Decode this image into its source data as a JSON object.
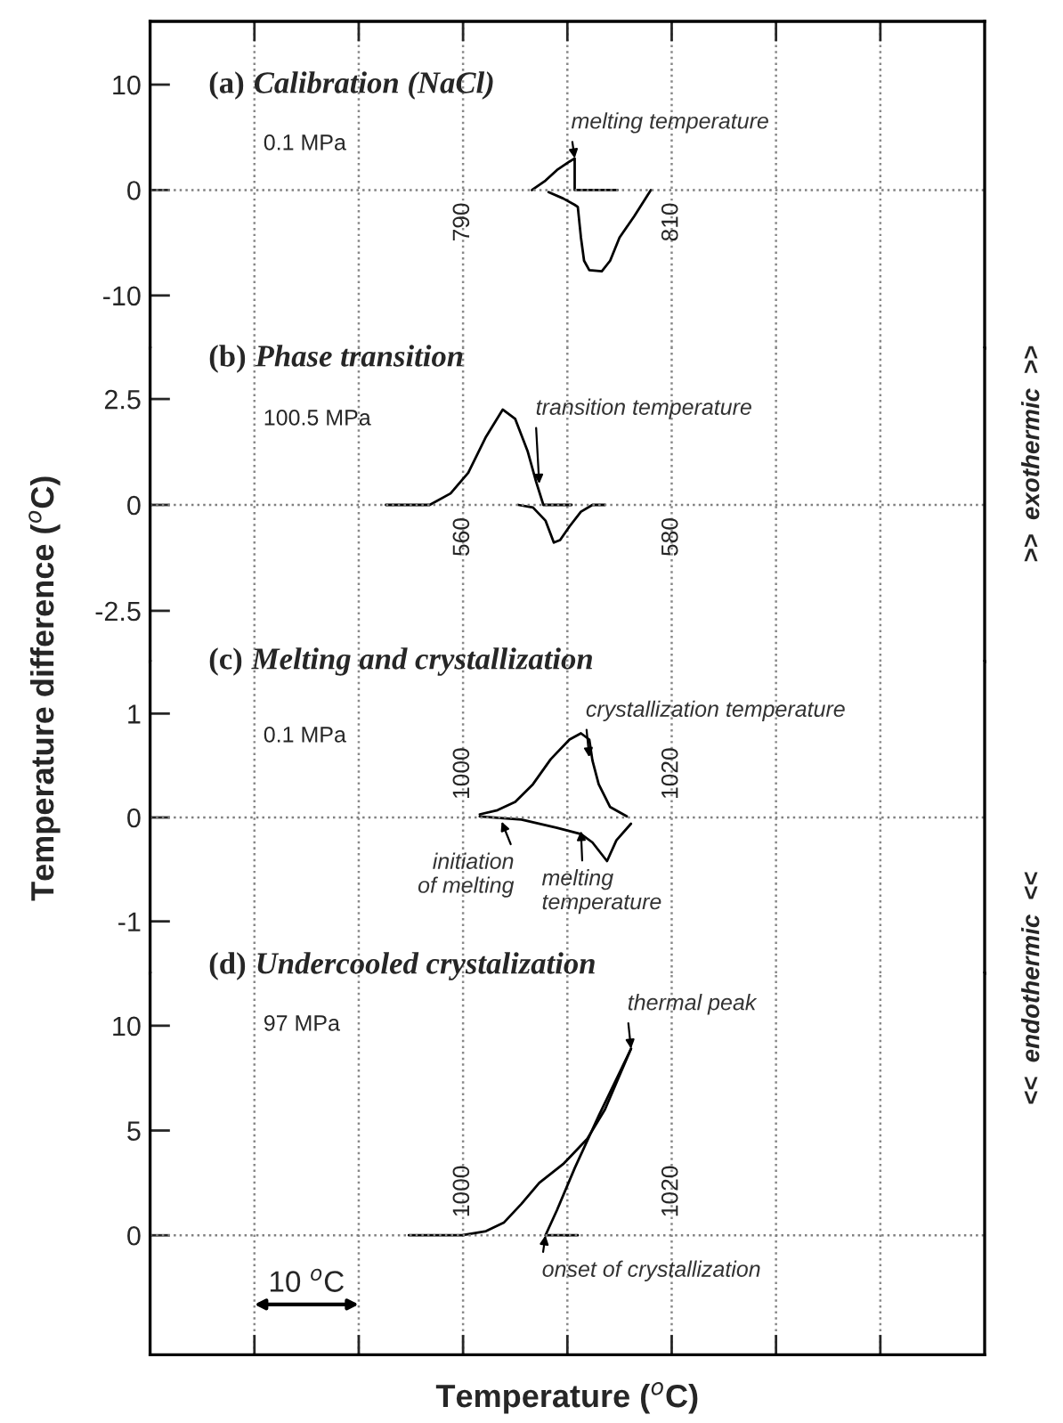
{
  "chart_data": [
    {
      "type": "line",
      "title": "(a) Calibration (NaCl)",
      "subtitle": "0.1 MPa",
      "series": [
        {
          "color": "#000000",
          "x": [
            796.6,
            797.9,
            799.0,
            800.2,
            800.7,
            800.7,
            800.7,
            804.8
          ],
          "values": [
            0,
            0.9,
            1.9,
            2.7,
            3.0,
            1.2,
            0,
            0
          ]
        },
        {
          "color": "#000000",
          "x": [
            798.2,
            799.6,
            800.7,
            801.0,
            801.3,
            801.6,
            802.1,
            803.3,
            804.1,
            805.0,
            806.4,
            808.0
          ],
          "values": [
            -0.2,
            -0.8,
            -1.4,
            -1.6,
            -4.5,
            -6.7,
            -7.6,
            -7.7,
            -6.7,
            -4.5,
            -2.5,
            0
          ]
        }
      ],
      "xlim": [
        760,
        840
      ],
      "xticks": [
        {
          "value": 770,
          "label": null
        },
        {
          "value": 780,
          "label": null
        },
        790,
        {
          "value": 800,
          "label": null
        },
        810,
        {
          "value": 820,
          "label": null
        },
        {
          "value": 830,
          "label": null
        }
      ],
      "ylim": [
        -15,
        16
      ],
      "yticks": [
        10,
        0,
        {
          "value": -10,
          "label": "-10"
        }
      ],
      "grid": "x",
      "ref_lines": [
        {
          "axis": "y",
          "value": 0,
          "color": "#808080",
          "line_style": "dotted"
        }
      ],
      "annotations": [
        {
          "text": "melting temperature",
          "x": 800.7,
          "y": 3.0
        }
      ]
    },
    {
      "type": "line",
      "title": "(b) Phase transition",
      "subtitle": "100.5 MPa",
      "ylabel": "Temperature difference ($^{o}$C)",
      "series": [
        {
          "color": "#000000",
          "x": [
            552.6,
            556.8,
            558.8,
            560.5,
            562.2,
            563.8,
            565.0,
            566.2,
            567.0,
            567.7,
            570.4
          ],
          "values": [
            0,
            0,
            0.27,
            0.76,
            1.61,
            2.25,
            2.03,
            1.26,
            0.55,
            0,
            0
          ]
        },
        {
          "color": "#000000",
          "x": [
            565.3,
            566.7,
            567.9,
            568.7,
            569.3,
            570.2,
            571.3,
            572.4,
            573.6
          ],
          "values": [
            0,
            -0.06,
            -0.37,
            -0.89,
            -0.83,
            -0.51,
            -0.16,
            0,
            0
          ]
        }
      ],
      "xlim": [
        530,
        610
      ],
      "xticks": [
        {
          "value": 540,
          "label": null
        },
        {
          "value": 550,
          "label": null
        },
        560,
        {
          "value": 570,
          "label": null
        },
        580,
        {
          "value": 590,
          "label": null
        },
        {
          "value": 600,
          "label": null
        }
      ],
      "ylim": [
        -3.7,
        3.7
      ],
      "yticks": [
        2.5,
        0,
        {
          "value": -2.5,
          "label": "-2.5"
        }
      ],
      "grid": "x",
      "ref_lines": [
        {
          "axis": "y",
          "value": 0,
          "color": "#808080",
          "line_style": "dotted"
        }
      ],
      "annotations": [
        {
          "text": "transition temperature",
          "x": 567.3,
          "y": 0.5
        },
        ">>  exothermic  >>"
      ]
    },
    {
      "type": "line",
      "title": "(c) Melting and crystallization",
      "subtitle": "0.1 MPa",
      "series": [
        {
          "color": "#000000",
          "x": [
            1001.6,
            1003.3,
            1005.0,
            1006.7,
            1008.4,
            1010.2,
            1011.3,
            1012.1,
            1012.4,
            1013.0,
            1014.1,
            1015.7
          ],
          "values": [
            0.03,
            0.07,
            0.15,
            0.32,
            0.56,
            0.75,
            0.81,
            0.75,
            0.55,
            0.32,
            0.1,
            0.01
          ]
        },
        {
          "color": "#000000",
          "x": [
            1001.6,
            1005.6,
            1009.0,
            1011.3,
            1012.4,
            1013.8,
            1014.7,
            1016.1
          ],
          "values": [
            0.01,
            -0.02,
            -0.1,
            -0.16,
            -0.24,
            -0.42,
            -0.22,
            -0.06
          ]
        }
      ],
      "xlim": [
        970,
        1050
      ],
      "xticks": [
        {
          "value": 980,
          "label": null
        },
        {
          "value": 990,
          "label": null
        },
        1000,
        {
          "value": 1010,
          "label": null
        },
        1020,
        {
          "value": 1030,
          "label": null
        },
        {
          "value": 1040,
          "label": null
        }
      ],
      "ylim": [
        -1.5,
        1.5
      ],
      "yticks": [
        1,
        0,
        {
          "value": -1,
          "label": "-1"
        }
      ],
      "grid": "x",
      "ref_lines": [
        {
          "axis": "y",
          "value": 0,
          "color": "#808080",
          "line_style": "dotted"
        }
      ],
      "annotations": [
        {
          "text": "crystallization temperature",
          "x": 1012.1,
          "y": 0.58
        },
        {
          "text": "initiation\nof melting",
          "x": 1003.7,
          "y": -0.04
        },
        {
          "text": "melting\ntemperature",
          "x": 1011.3,
          "y": -0.13
        },
        "<<  endothermic  <<"
      ]
    },
    {
      "type": "line",
      "title": "(d) Undercooled crystalization",
      "subtitle": "97 MPa",
      "xlabel": "Temperature ($^{o}$C)",
      "series": [
        {
          "color": "#000000",
          "x": [
            994.8,
            999.9,
            1002.2,
            1003.9,
            1005.6,
            1007.3,
            1009.6,
            1011.9,
            1013.6,
            1016.1
          ],
          "values": [
            0,
            0,
            0.2,
            0.6,
            1.5,
            2.5,
            3.4,
            4.6,
            6.0,
            8.9
          ]
        },
        {
          "color": "#000000",
          "x": [
            1011.0,
            1007.9,
            1009.0,
            1010.7,
            1013.0,
            1016.1
          ],
          "values": [
            0,
            0,
            1.2,
            3.2,
            5.7,
            8.9
          ]
        }
      ],
      "xlim": [
        970,
        1050
      ],
      "xticks": [
        {
          "value": 980,
          "label": null
        },
        {
          "value": 990,
          "label": null
        },
        1000,
        {
          "value": 1010,
          "label": null
        },
        1020,
        {
          "value": 1030,
          "label": null
        },
        {
          "value": 1040,
          "label": null
        }
      ],
      "ylim": [
        -5.7,
        12.5
      ],
      "yticks": [
        10,
        5,
        0
      ],
      "grid": "x",
      "ref_lines": [
        {
          "axis": "y",
          "value": 0,
          "color": "#808080",
          "line_style": "dotted"
        }
      ],
      "annotations": [
        {
          "text": "thermal peak",
          "x": 1016.1,
          "y": 8.9
        },
        {
          "text": "onset of crystallization",
          "x": 1007.9,
          "y": 0
        },
        "10 $^{o}$C"
      ]
    }
  ]
}
